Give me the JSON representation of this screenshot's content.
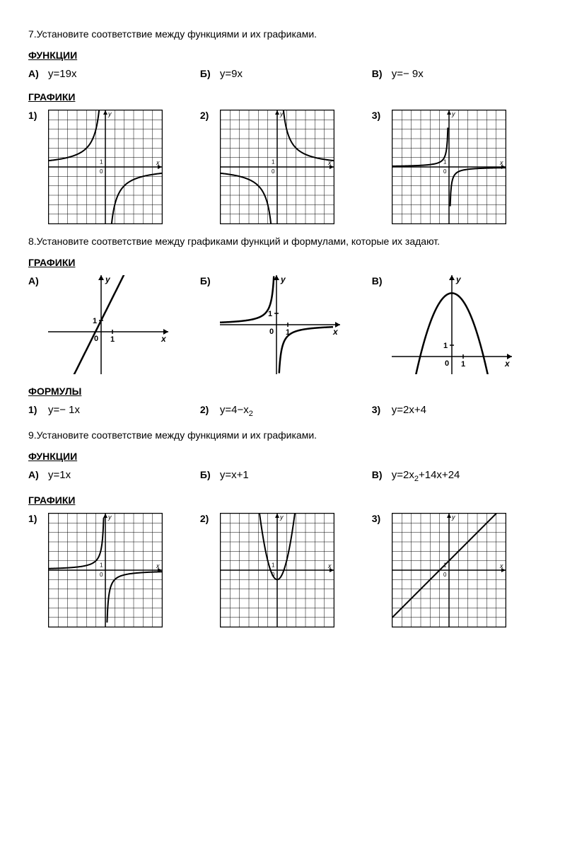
{
  "task7": {
    "text": "7.Установите соответствие между функциями и их графиками.",
    "functionsTitle": "ФУНКЦИИ",
    "funcA_label": "А)",
    "funcA_formula": "y=19x",
    "funcB_label": "Б)",
    "funcB_formula": "y=9x",
    "funcC_label": "В)",
    "funcC_formula": "y=− 9x",
    "graphsTitle": "ГРАФИКИ",
    "g1_label": "1)",
    "g2_label": "2)",
    "g3_label": "3)"
  },
  "task8": {
    "text": "8.Установите соответствие между графиками функций и формулами, которые их задают.",
    "graphsTitle": "ГРАФИКИ",
    "gA_label": "А)",
    "gB_label": "Б)",
    "gC_label": "В)",
    "formulasTitle": "ФОРМУЛЫ",
    "f1_label": "1)",
    "f1_formula": "y=− 1x",
    "f2_label": "2)",
    "f2_formula_pre": "y=4−x",
    "f2_sub": "2",
    "f3_label": "3)",
    "f3_formula": "y=2x+4"
  },
  "task9": {
    "text": "9.Установите соответствие между функциями и их графиками.",
    "functionsTitle": "ФУНКЦИИ",
    "funcA_label": "А)",
    "funcA_formula": "y=1x",
    "funcB_label": "Б)",
    "funcB_formula": "y=x+1",
    "funcC_label": "В)",
    "funcC_pre": "y=2x",
    "funcC_sub": "2",
    "funcC_post": "+14x+24",
    "graphsTitle": "ГРАФИКИ",
    "g1_label": "1)",
    "g2_label": "2)",
    "g3_label": "3)"
  },
  "axisLabels": {
    "y": "y",
    "x": "x",
    "one": "1",
    "zero": "0"
  },
  "style": {
    "gridColor": "#000",
    "curveColor": "#000",
    "curveWidth": 2,
    "gridSize": 160,
    "cells": 12
  }
}
